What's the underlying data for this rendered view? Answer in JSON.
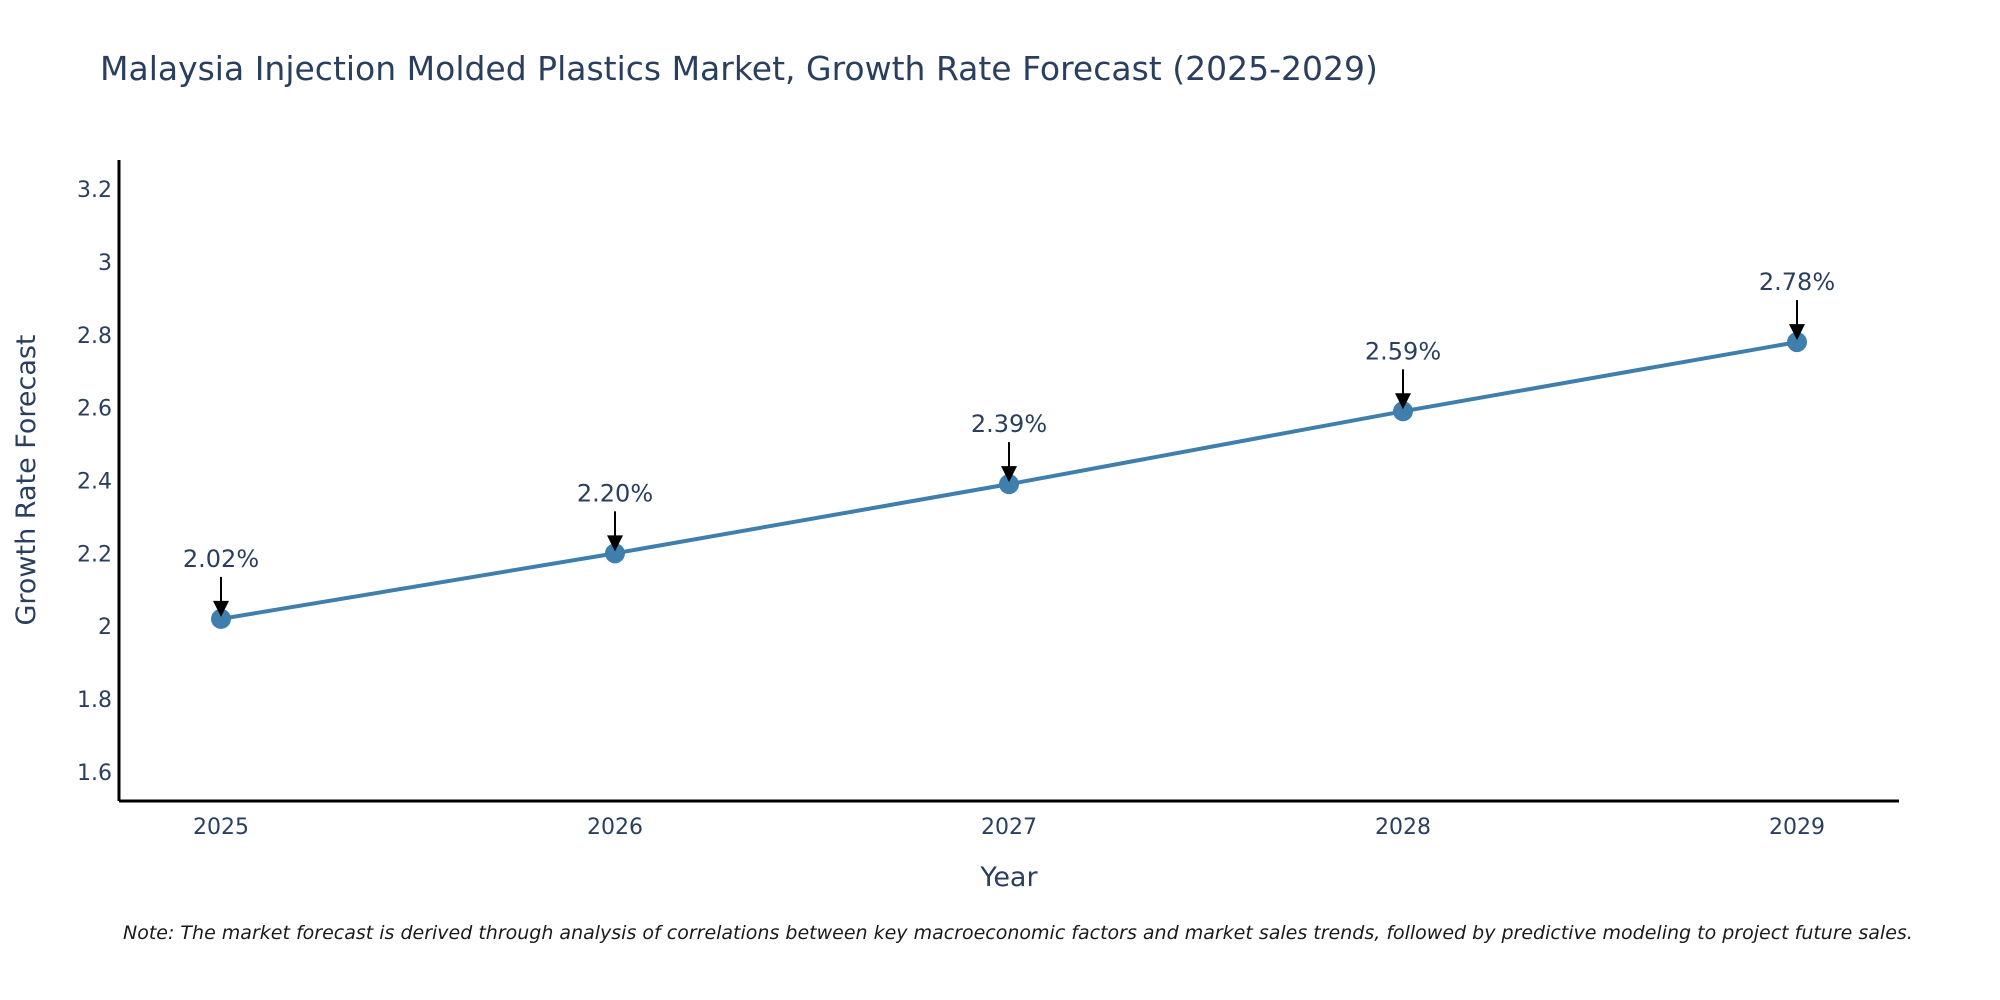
{
  "chart_data": {
    "type": "line",
    "title": "Malaysia Injection Molded Plastics Market, Growth Rate Forecast (2025-2029)",
    "xlabel": "Year",
    "ylabel": "Growth Rate Forecast",
    "categories": [
      "2025",
      "2026",
      "2027",
      "2028",
      "2029"
    ],
    "series": [
      {
        "name": "Growth Rate Forecast",
        "values": [
          2.02,
          2.2,
          2.39,
          2.59,
          2.78
        ],
        "labels": [
          "2.02%",
          "2.20%",
          "2.39%",
          "2.59%",
          "2.78%"
        ]
      }
    ],
    "ylim": [
      1.52,
      3.28
    ],
    "yticks": [
      1.6,
      1.8,
      2.0,
      2.2,
      2.4,
      2.6,
      2.8,
      3.0,
      3.2
    ],
    "ytick_labels": [
      "1.6",
      "1.8",
      "2",
      "2.2",
      "2.4",
      "2.6",
      "2.8",
      "3",
      "3.2"
    ],
    "grid": false,
    "line_color": "#3e7fad",
    "marker_color": "#3e7fad",
    "arrow_color": "#000000",
    "note": "Note: The market forecast is derived through analysis of correlations between key macroeconomic factors and market sales trends, followed by predictive modeling to project future sales."
  }
}
